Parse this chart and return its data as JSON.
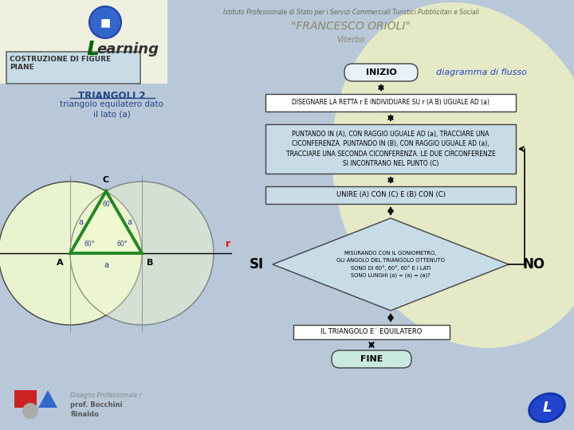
{
  "bg_color": "#b8c8d8",
  "title_box_text": "COSTRUZIONE DI FIGURE\nPIANE",
  "subtitle1": "TRIANGOLI 2",
  "subtitle2": "triangolo equilatero dato",
  "subtitle3": "il lato (a)",
  "header_inst": "Istituto Professionale di Stato per i Servizi Commerciali Turistici Pubblicitari e Sociali",
  "header_school": "\"FRANCESCO ORIOLI\"",
  "header_city": "Viterbo",
  "inizio_text": "INIZIO",
  "diagramma_text": "diagramma di flusso",
  "step1_text": "DISEGNARE LA RETTA r E INDIVIDUARE SU r (A B) UGUALE AD (a)",
  "step2_text": "PUNTANDO IN (A), CON RAGGIO UGUALE AD (a), TRACCIARE UNA\nCICONFERENZA. PUNTANDO IN (B), CON RAGGIO UGUALE AD (a),\nTRACCIARE UNA SECONDA CICONFERENZA. LE DUE CIRCONFERENZE\nSI INCONTRANO NEL PUNTO (C)",
  "step3_text": "UNIRE (A) CON (C) E (B) CON (C)",
  "diamond_text": "MISURANDO CON IL GONIOMETRO,\nGLI ANGOLO DEL TRIANGOLO OTTENUTO\nSONO DI 60°, 60°, 60° E I LATI\nSONO LUNGHI (a) = (a) = (a)?",
  "si_text": "SI",
  "no_text": "NO",
  "step4_text": "IL TRIANGOLO E´ EQUILATERO",
  "fine_text": "FINE",
  "author_line1": "Disegno Professionale r",
  "author_line2": "prof. Bocchini",
  "author_line3": "Rinaldo",
  "flow_color": "#c8dce8",
  "box_border": "#404040",
  "green_color": "#228822",
  "triangle_fill": "#f0f8d0",
  "circle_fill": "#f0f8d0"
}
